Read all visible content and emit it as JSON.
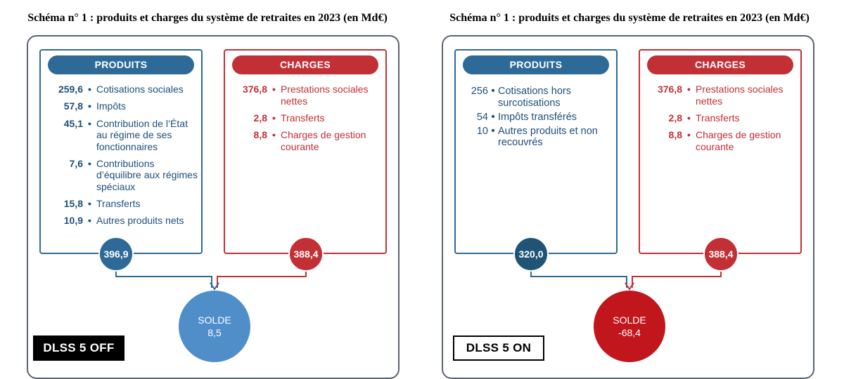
{
  "colors": {
    "produits": "#2e6a98",
    "charges": "#c23036",
    "solde_positive": "#4f8ec9",
    "solde_negative": "#c0161c",
    "frame": "#5b6470"
  },
  "left": {
    "title": "Schéma n° 1 : produits et charges du système de retraites en 2023 (en Md€)",
    "produits": {
      "header": "PRODUITS",
      "items": [
        {
          "value": "259,6",
          "label": "Cotisations sociales"
        },
        {
          "value": "57,8",
          "label": "Impôts"
        },
        {
          "value": "45,1",
          "label": "Contribution de l’État au régime de ses fonctionnaires"
        },
        {
          "value": "7,6",
          "label": "Contributions d’équilibre aux régimes spéciaux"
        },
        {
          "value": "15,8",
          "label": "Transferts"
        },
        {
          "value": "10,9",
          "label": "Autres produits nets"
        }
      ],
      "total": "396,9"
    },
    "charges": {
      "header": "CHARGES",
      "items": [
        {
          "value": "376,8",
          "label": "Prestations sociales nettes"
        },
        {
          "value": "2,8",
          "label": "Transferts"
        },
        {
          "value": "8,8",
          "label": "Charges de gestion courante"
        }
      ],
      "total": "388,4"
    },
    "solde": {
      "label": "SOLDE",
      "value": "8,5"
    },
    "badge": "DLSS 5 OFF"
  },
  "right": {
    "title": "Schéma n° 1 : produits et charges du système de retraites en 2023 (en Md€)",
    "produits": {
      "header": "PRODUITS",
      "items": [
        {
          "value": "256",
          "label": "Cotisations hors surcotisations"
        },
        {
          "value": "54",
          "label": "Impôts transférés"
        },
        {
          "value": "10",
          "label": "Autres produits et non recouvrés"
        }
      ],
      "total": "320,0"
    },
    "charges": {
      "header": "CHARGES",
      "items": [
        {
          "value": "376,8",
          "label": "Prestations sociales nettes"
        },
        {
          "value": "2,8",
          "label": "Transferts"
        },
        {
          "value": "8,8",
          "label": "Charges de gestion courante"
        }
      ],
      "total": "388,4"
    },
    "solde": {
      "label": "SOLDE",
      "value": "-68,4"
    },
    "badge": "DLSS 5 ON"
  },
  "bullet": "•"
}
